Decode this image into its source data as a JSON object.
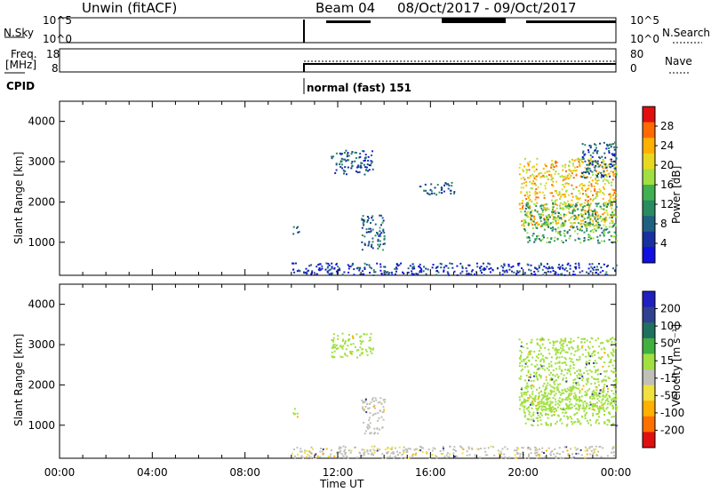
{
  "header": {
    "station": "Unwin (fitACF)",
    "beam": "Beam 04",
    "date_range": "08/Oct/2017 - 09/Oct/2017"
  },
  "panels": {
    "nsky_label": "N.Sky",
    "nsearch_label": "N.Search",
    "freq_label_top": "Freq.",
    "freq_label_bot": "[MHz]",
    "nave_label": "Nave",
    "cpid_label": "CPID",
    "cpid_value": "normal (fast) 151",
    "nsky_ticks": [
      "10^5",
      "10^0"
    ],
    "nsearch_ticks": [
      "10^5",
      "10^0"
    ],
    "freq_ticks": [
      "18",
      "8"
    ],
    "nave_ticks": [
      "80",
      "0"
    ]
  },
  "power_colorbar": {
    "label": "Power [dB]",
    "ticks": [
      "28",
      "24",
      "20",
      "16",
      "12",
      "8",
      "4"
    ],
    "colors": [
      "#e01010",
      "#ff6a00",
      "#ffb000",
      "#e8d820",
      "#a0e040",
      "#40b050",
      "#2a8a60",
      "#206080",
      "#1830a0",
      "#1010e0"
    ]
  },
  "velocity_colorbar": {
    "label": "Velocity [m s⁻¹]",
    "ticks": [
      "200",
      "100",
      "50",
      "15",
      "-15",
      "-50",
      "-100",
      "-200"
    ],
    "colors": [
      "#2020c0",
      "#304090",
      "#207060",
      "#40b040",
      "#a0e040",
      "#c0c0b8",
      "#f0e040",
      "#ffb000",
      "#ff7000",
      "#e01010"
    ]
  },
  "chart_data": [
    {
      "type": "heatmap",
      "name_hint": "power",
      "ylabel": "Slant Range [km]",
      "yticks": [
        1000,
        2000,
        3000,
        4000
      ],
      "ylim": [
        180,
        4500
      ],
      "xlim": [
        0,
        24
      ],
      "xtick_labels": [
        "00:00",
        "04:00",
        "08:00",
        "12:00",
        "16:00",
        "20:00",
        "00:00"
      ],
      "xlabel": "Time UT",
      "regions": [
        {
          "t0": 10.0,
          "t1": 10.3,
          "r0": 1200,
          "r1": 1450,
          "v": 8
        },
        {
          "t0": 11.7,
          "t1": 13.5,
          "r0": 2700,
          "r1": 3300,
          "v": 8
        },
        {
          "t0": 13.0,
          "t1": 14.0,
          "r0": 800,
          "r1": 1700,
          "v": 9
        },
        {
          "t0": 15.5,
          "t1": 17.0,
          "r0": 2200,
          "r1": 2500,
          "v": 8
        },
        {
          "t0": 10.0,
          "t1": 24.0,
          "r0": 200,
          "r1": 500,
          "v": 6
        },
        {
          "t0": 19.8,
          "t1": 24.0,
          "r0": 1400,
          "r1": 3100,
          "v": 22
        },
        {
          "t0": 20.0,
          "t1": 24.0,
          "r0": 1000,
          "r1": 2000,
          "v": 14
        },
        {
          "t0": 22.5,
          "t1": 24.0,
          "r0": 2600,
          "r1": 3500,
          "v": 8
        }
      ]
    },
    {
      "type": "heatmap",
      "name_hint": "velocity",
      "ylabel": "Slant Range [km]",
      "yticks": [
        1000,
        2000,
        3000,
        4000
      ],
      "ylim": [
        180,
        4500
      ],
      "xlim": [
        0,
        24
      ],
      "xtick_labels": [
        "00:00",
        "04:00",
        "08:00",
        "12:00",
        "16:00",
        "20:00",
        "00:00"
      ],
      "xlabel": "Time UT",
      "regions": [
        {
          "t0": 10.0,
          "t1": 10.3,
          "r0": 1200,
          "r1": 1450,
          "v": 0
        },
        {
          "t0": 11.7,
          "t1": 13.5,
          "r0": 2700,
          "r1": 3300,
          "v": 0
        },
        {
          "t0": 13.0,
          "t1": 14.0,
          "r0": 800,
          "r1": 1700,
          "v": -30
        },
        {
          "t0": 10.0,
          "t1": 24.0,
          "r0": 200,
          "r1": 500,
          "v": -40
        },
        {
          "t0": 19.8,
          "t1": 24.0,
          "r0": 1400,
          "r1": 3200,
          "v": 0
        },
        {
          "t0": 20.0,
          "t1": 24.0,
          "r0": 1000,
          "r1": 2000,
          "v": 0
        }
      ]
    }
  ]
}
